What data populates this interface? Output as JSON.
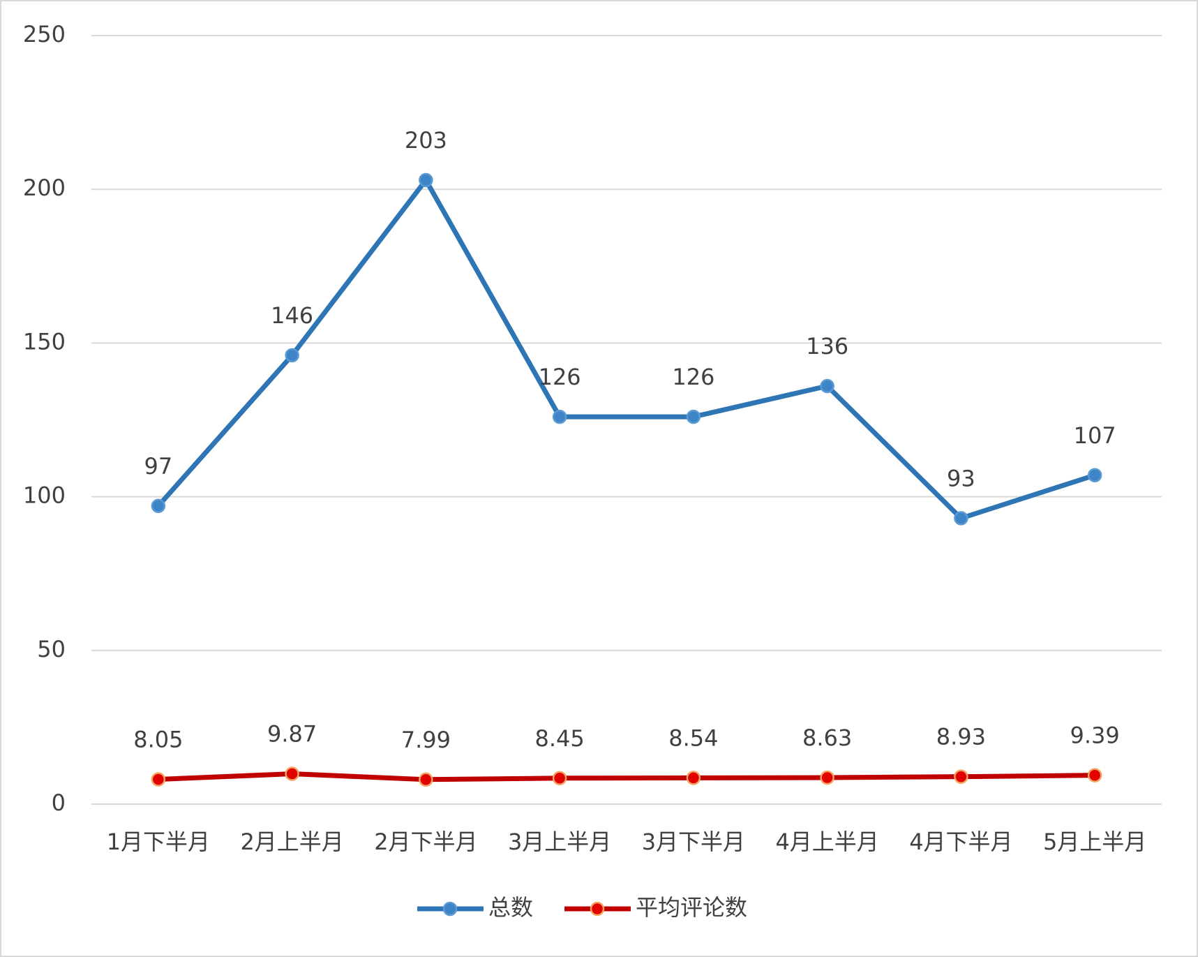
{
  "chart_data": {
    "type": "line",
    "categories": [
      "1月下半月",
      "2月上半月",
      "2月下半月",
      "3月上半月",
      "3月下半月",
      "4月上半月",
      "4月下半月",
      "5月上半月"
    ],
    "series": [
      {
        "name": "总数",
        "color": "#2e75b6",
        "values": [
          97,
          146,
          203,
          126,
          126,
          136,
          93,
          107
        ]
      },
      {
        "name": "平均评论数",
        "color": "#c00000",
        "values": [
          8.05,
          9.87,
          7.99,
          8.45,
          8.54,
          8.63,
          8.93,
          9.39
        ]
      }
    ],
    "ylim": [
      0,
      250
    ],
    "yticks": [
      0,
      50,
      100,
      150,
      200,
      250
    ],
    "grid": true,
    "legend": "bottom"
  }
}
